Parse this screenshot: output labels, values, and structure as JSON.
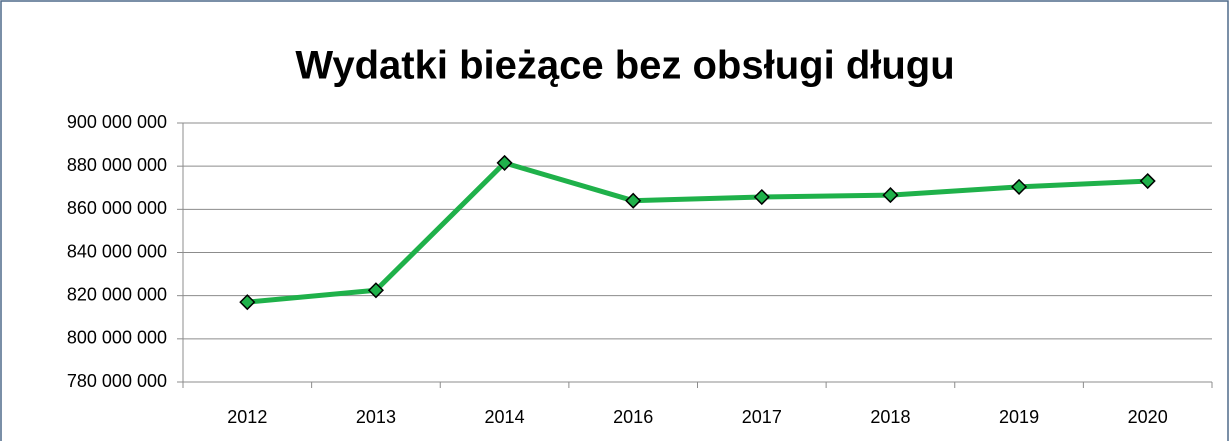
{
  "chart_data": {
    "type": "line",
    "title": "Wydatki bieżące bez obsługi długu",
    "categories": [
      "2012",
      "2013",
      "2014",
      "2016",
      "2017",
      "2018",
      "2019",
      "2020"
    ],
    "series": [
      {
        "name": "Wydatki bieżące bez obsługi długu",
        "color": "#1fb14a",
        "values": [
          817000000,
          822500000,
          881500000,
          864000000,
          865700000,
          866600000,
          870400000,
          873100000
        ]
      }
    ],
    "ylim": [
      780000000,
      900000000
    ],
    "yticks": [
      {
        "value": 780000000,
        "label": "780 000 000"
      },
      {
        "value": 800000000,
        "label": "800 000 000"
      },
      {
        "value": 820000000,
        "label": "820 000 000"
      },
      {
        "value": 840000000,
        "label": "840 000 000"
      },
      {
        "value": 860000000,
        "label": "860 000 000"
      },
      {
        "value": 880000000,
        "label": "880 000 000"
      },
      {
        "value": 900000000,
        "label": "900 000 000"
      }
    ],
    "grid": true
  }
}
